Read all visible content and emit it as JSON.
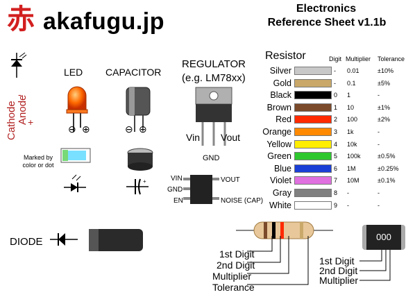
{
  "header": {
    "kanji": "赤",
    "site": "akafugu.jp",
    "title_line1": "Electronics",
    "title_line2": "Reference Sheet v1.1b"
  },
  "polarity": {
    "cathode": "Cathode",
    "minus": "-",
    "anode": "Anode",
    "plus": "+"
  },
  "led": {
    "title": "LED",
    "minus": "⊖",
    "plus": "⊕",
    "marked": "Marked by color or dot"
  },
  "capacitor": {
    "title": "CAPACITOR",
    "minus": "⊖",
    "plus": "⊕"
  },
  "regulator": {
    "title": "REGULATOR",
    "subtitle": "(e.g. LM78xx)",
    "vin": "Vin",
    "vout": "Vout",
    "gnd": "GND",
    "pins_left": [
      "VIN",
      "GND",
      "EN"
    ],
    "pins_right": [
      "VOUT",
      "NOISE (CAP)"
    ]
  },
  "diode": {
    "title": "DIODE"
  },
  "resistor": {
    "title": "Resistor",
    "headers": {
      "digit": "Digit",
      "multiplier": "Multiplier",
      "tolerance": "Tolerance"
    },
    "rows": [
      {
        "name": "Silver",
        "color": "#c8c8c8",
        "digit": "-",
        "mult": "0.01",
        "tol": "±10%"
      },
      {
        "name": "Gold",
        "color": "#c9a86a",
        "digit": "-",
        "mult": "0.1",
        "tol": "±5%"
      },
      {
        "name": "Black",
        "color": "#000000",
        "digit": "0",
        "mult": "1",
        "tol": "-"
      },
      {
        "name": "Brown",
        "color": "#7a4a2a",
        "digit": "1",
        "mult": "10",
        "tol": "±1%"
      },
      {
        "name": "Red",
        "color": "#ff2a00",
        "digit": "2",
        "mult": "100",
        "tol": "±2%"
      },
      {
        "name": "Orange",
        "color": "#ff8a00",
        "digit": "3",
        "mult": "1k",
        "tol": "-"
      },
      {
        "name": "Yellow",
        "color": "#ffee00",
        "digit": "4",
        "mult": "10k",
        "tol": "-"
      },
      {
        "name": "Green",
        "color": "#2ec82e",
        "digit": "5",
        "mult": "100k",
        "tol": "±0.5%"
      },
      {
        "name": "Blue",
        "color": "#1a3fd6",
        "digit": "6",
        "mult": "1M",
        "tol": "±0.25%"
      },
      {
        "name": "Violet",
        "color": "#e070e0",
        "digit": "7",
        "mult": "10M",
        "tol": "±0.1%"
      },
      {
        "name": "Gray",
        "color": "#808080",
        "digit": "8",
        "mult": "-",
        "tol": "-"
      },
      {
        "name": "White",
        "color": "#ffffff",
        "digit": "9",
        "mult": "-",
        "tol": "-"
      }
    ]
  },
  "resistor_band_labels": [
    "1st Digit",
    "2nd Digit",
    "Multiplier",
    "Tolerance"
  ],
  "smd_resistor": {
    "code": "000",
    "labels": [
      "1st Digit",
      "2nd Digit",
      "Multiplier"
    ]
  }
}
